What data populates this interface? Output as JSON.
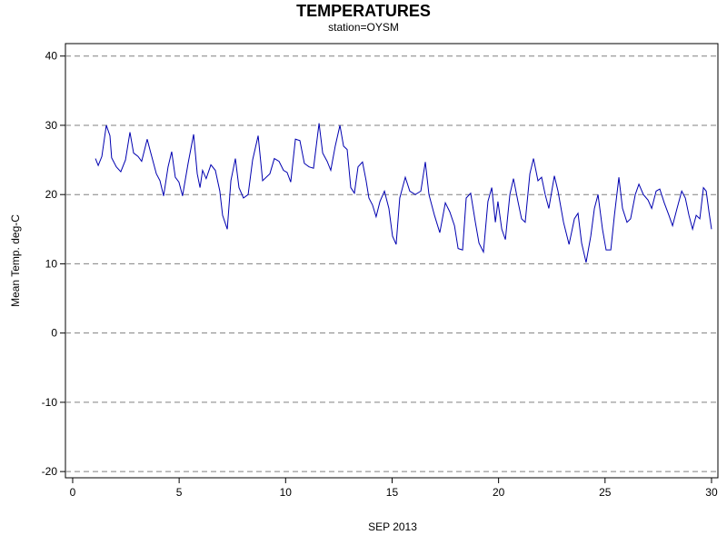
{
  "chart_data": {
    "type": "line",
    "title": "TEMPERATURES",
    "subtitle": "station=OYSM",
    "xlabel": "SEP 2013",
    "ylabel": "Mean Temp. deg-C",
    "x": [
      1.07,
      1.2,
      1.37,
      1.58,
      1.75,
      1.83,
      2.05,
      2.26,
      2.48,
      2.69,
      2.86,
      3.07,
      3.24,
      3.5,
      3.67,
      3.93,
      4.1,
      4.27,
      4.48,
      4.65,
      4.82,
      4.99,
      5.16,
      5.42,
      5.68,
      5.85,
      5.98,
      6.1,
      6.27,
      6.49,
      6.7,
      6.91,
      7.04,
      7.26,
      7.43,
      7.64,
      7.81,
      8.02,
      8.24,
      8.45,
      8.71,
      8.92,
      9.09,
      9.26,
      9.47,
      9.69,
      9.9,
      10.07,
      10.24,
      10.46,
      10.67,
      10.88,
      11.1,
      11.31,
      11.57,
      11.74,
      11.95,
      12.12,
      12.33,
      12.55,
      12.72,
      12.89,
      13.06,
      13.23,
      13.4,
      13.61,
      13.78,
      13.91,
      14.08,
      14.25,
      14.43,
      14.64,
      14.85,
      15.02,
      15.19,
      15.36,
      15.62,
      15.83,
      16.09,
      16.35,
      16.56,
      16.73,
      16.99,
      17.24,
      17.5,
      17.71,
      17.93,
      18.1,
      18.31,
      18.48,
      18.69,
      18.91,
      19.08,
      19.29,
      19.5,
      19.68,
      19.85,
      19.97,
      20.15,
      20.32,
      20.53,
      20.7,
      20.91,
      21.08,
      21.25,
      21.47,
      21.64,
      21.85,
      22.02,
      22.19,
      22.36,
      22.62,
      22.79,
      23.05,
      23.31,
      23.56,
      23.73,
      23.9,
      24.11,
      24.33,
      24.5,
      24.67,
      24.88,
      25.05,
      25.27,
      25.44,
      25.65,
      25.82,
      26.03,
      26.2,
      26.42,
      26.59,
      26.8,
      27.02,
      27.19,
      27.4,
      27.57,
      27.78,
      28.0,
      28.17,
      28.38,
      28.6,
      28.77,
      28.94,
      29.11,
      29.28,
      29.45,
      29.62,
      29.75,
      29.88,
      30.0
    ],
    "series": [
      {
        "name": "Mean Temp.",
        "color": "#0000b0",
        "values": [
          25.2,
          24.2,
          25.5,
          30,
          28.5,
          25.3,
          24,
          23.3,
          25,
          29,
          26,
          25.5,
          24.8,
          28,
          26,
          23,
          22,
          19.8,
          24,
          26.2,
          22.5,
          21.8,
          19.8,
          24.5,
          28.7,
          23,
          21,
          23.5,
          22.3,
          24.3,
          23.5,
          20.5,
          17,
          15,
          22,
          25.2,
          21,
          19.5,
          20,
          25,
          28.5,
          22,
          22.5,
          23,
          25.2,
          24.8,
          23.5,
          23.2,
          21.8,
          28,
          27.8,
          24.5,
          24,
          23.8,
          30.3,
          26,
          24.8,
          23.5,
          27,
          30,
          27,
          26.5,
          21,
          20.2,
          24,
          24.7,
          22,
          19.5,
          18.5,
          16.8,
          19,
          20.5,
          18,
          14,
          12.8,
          19.5,
          22.5,
          20.5,
          20,
          20.5,
          24.7,
          20,
          17,
          14.5,
          18.8,
          17.5,
          15.5,
          12.2,
          12,
          19.5,
          20.2,
          16,
          13,
          11.7,
          19,
          21,
          16,
          19,
          15,
          13.5,
          20,
          22.3,
          19,
          16.5,
          16,
          23,
          25.2,
          22,
          22.5,
          20,
          18,
          22.7,
          20.5,
          16,
          12.8,
          16.5,
          17.3,
          13,
          10.2,
          14,
          18,
          20,
          15,
          12,
          12,
          17,
          22.5,
          18,
          16,
          16.5,
          20,
          21.5,
          20,
          19.2,
          18,
          20.5,
          20.8,
          18.8,
          17,
          15.5,
          18,
          20.5,
          19.5,
          17,
          15,
          17,
          16.5,
          21,
          20.5,
          17.5,
          15
        ]
      }
    ],
    "xlim": [
      -0.34,
      30.3
    ],
    "xticks": [
      0,
      5,
      10,
      15,
      20,
      25,
      30
    ],
    "ylim": [
      -20.9,
      41.8
    ],
    "yticks": [
      -20,
      -10,
      0,
      10,
      20,
      30,
      40
    ],
    "grid": true
  }
}
